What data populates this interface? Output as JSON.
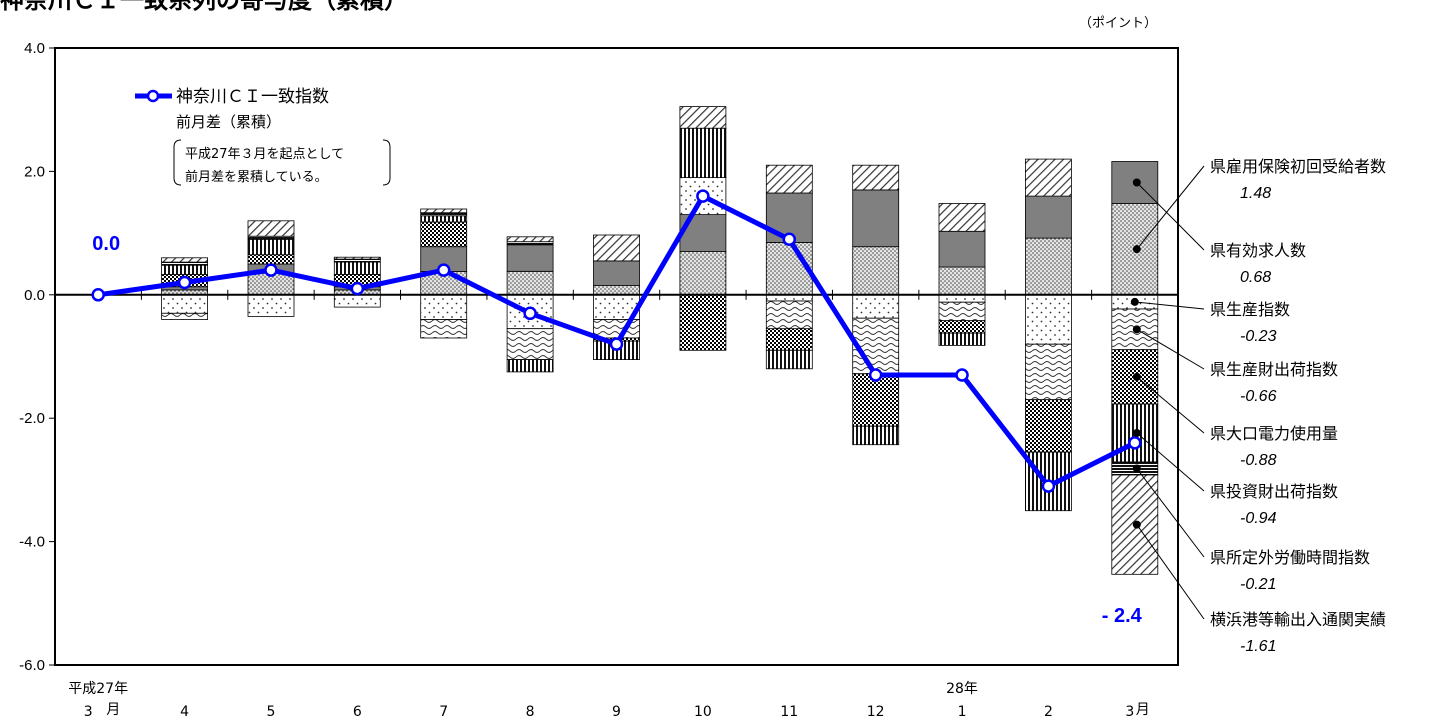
{
  "chart_data": {
    "type": "stacked-bar-line",
    "title": "神奈川ＣＩ一致系列の寄与度（累積）",
    "unit": "（ポイント）",
    "ylim": [
      -6,
      4
    ],
    "yticks": [
      "4.0",
      "2.0",
      "0.0",
      "-2.0",
      "-4.0",
      "-6.0"
    ],
    "ytick_values": [
      4,
      2,
      0,
      -2,
      -4,
      -6
    ],
    "categories": [
      "3",
      "4",
      "5",
      "6",
      "7",
      "8",
      "9",
      "10",
      "11",
      "12",
      "1",
      "2",
      "3"
    ],
    "x_unit_first": "月",
    "x_unit_last": "月",
    "era_labels": [
      {
        "text": "平成27年",
        "index": 0
      },
      {
        "text": "28年",
        "index": 10
      }
    ],
    "line": {
      "name": "神奈川ＣＩ一致指数",
      "name2": "前月差（累積）",
      "color": "#0000ff",
      "values": [
        0.0,
        0.2,
        0.4,
        0.1,
        0.4,
        -0.3,
        -0.8,
        1.6,
        0.9,
        -1.3,
        -1.3,
        -3.1,
        -2.4
      ]
    },
    "legend_note": [
      "平成27年３月を起点として",
      "前月差を累積している。"
    ],
    "annotations": [
      {
        "text": "0.0",
        "index": 0
      },
      {
        "text": "- 2.4",
        "index": 12
      }
    ],
    "series": [
      {
        "name": "県雇用保険初回受給者数",
        "final": "1.48",
        "pattern": "dots-dense",
        "values": [
          0,
          0.08,
          0.35,
          0.08,
          0.38,
          0.38,
          0.15,
          0.7,
          0.85,
          0.78,
          0.45,
          0.92,
          1.48
        ]
      },
      {
        "name": "県有効求人数",
        "final": "0.68",
        "pattern": "gray",
        "values": [
          0,
          0.05,
          0.15,
          0.05,
          0.4,
          0.43,
          0.4,
          0.6,
          0.8,
          0.92,
          0.58,
          0.68,
          0.68
        ]
      },
      {
        "name": "県生産指数",
        "final": "-0.23",
        "pattern": "dots-sparse",
        "values": [
          0,
          -0.3,
          -0.35,
          -0.2,
          -0.4,
          -0.55,
          -0.4,
          0.6,
          -0.1,
          -0.38,
          -0.12,
          -0.8,
          -0.23
        ]
      },
      {
        "name": "県生産財出荷指数",
        "final": "-0.66",
        "pattern": "waves",
        "values": [
          0,
          -0.1,
          0,
          0,
          -0.3,
          -0.5,
          -0.3,
          0,
          -0.45,
          -0.9,
          -0.3,
          -0.9,
          -0.66
        ]
      },
      {
        "name": "県大口電力使用量",
        "final": "-0.88",
        "pattern": "checker",
        "values": [
          0,
          0.2,
          0.15,
          0.2,
          0.4,
          0,
          -0.05,
          -0.9,
          -0.35,
          -0.85,
          -0.2,
          -0.85,
          -0.88
        ]
      },
      {
        "name": "県投資財出荷指数",
        "final": "-0.94",
        "pattern": "vertical",
        "values": [
          0,
          0.15,
          0.25,
          0.2,
          0.1,
          -0.2,
          -0.3,
          0.8,
          -0.3,
          -0.3,
          -0.2,
          -0.95,
          -0.94
        ]
      },
      {
        "name": "県所定外労働時間指数",
        "final": "-0.21",
        "pattern": "horizontal",
        "values": [
          0,
          0.05,
          0.05,
          0.05,
          0.05,
          0.05,
          0,
          0,
          0,
          0,
          0,
          0,
          -0.21
        ]
      },
      {
        "name": "横浜港等輸出入通関実績",
        "final": "-1.61",
        "pattern": "diagonal",
        "values": [
          0,
          0.07,
          0.25,
          0.03,
          0.06,
          0.08,
          0.42,
          0.35,
          0.45,
          0.4,
          0.45,
          0.6,
          -1.61
        ]
      }
    ]
  }
}
